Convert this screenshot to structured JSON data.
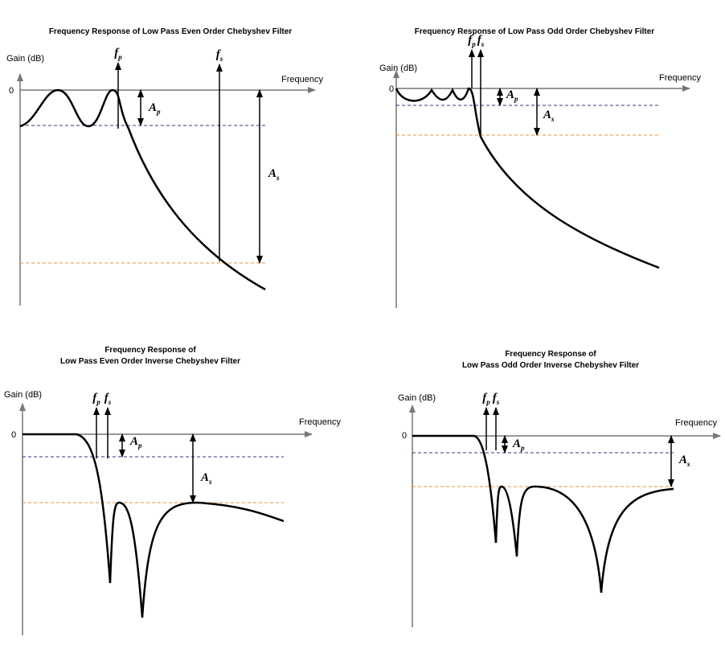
{
  "panels": [
    {
      "title": [
        "Frequency Response of Low Pass Even Order Chebyshev Filter"
      ],
      "y_label": "Gain (dB)",
      "x_label": "Frequency",
      "zero_label": "0",
      "fp": {
        "symbol": "f",
        "subscript": "p"
      },
      "fs": {
        "symbol": "f",
        "subscript": "s"
      },
      "ap": {
        "symbol": "A",
        "subscript": "p"
      },
      "as": {
        "symbol": "A",
        "subscript": "s"
      }
    },
    {
      "title": [
        "Frequency Response of Low Pass Odd Order Chebyshev Filter"
      ],
      "y_label": "Gain (dB)",
      "x_label": "Frequency",
      "zero_label": "0",
      "fp": {
        "symbol": "f",
        "subscript": "p"
      },
      "fs": {
        "symbol": "f",
        "subscript": "s"
      },
      "ap": {
        "symbol": "A",
        "subscript": "p"
      },
      "as": {
        "symbol": "A",
        "subscript": "s"
      }
    },
    {
      "title": [
        "Frequency Response of",
        "Low Pass Even Order Inverse Chebyshev Filter"
      ],
      "y_label": "Gain (dB)",
      "x_label": "Frequency",
      "zero_label": "0",
      "fp": {
        "symbol": "f",
        "subscript": "p"
      },
      "fs": {
        "symbol": "f",
        "subscript": "s"
      },
      "ap": {
        "symbol": "A",
        "subscript": "p"
      },
      "as": {
        "symbol": "A",
        "subscript": "s"
      }
    },
    {
      "title": [
        "Frequency Response of",
        "Low Pass Odd Order Inverse Chebyshev Filter"
      ],
      "y_label": "Gain (dB)",
      "x_label": "Frequency",
      "zero_label": "0",
      "fp": {
        "symbol": "f",
        "subscript": "p"
      },
      "fs": {
        "symbol": "f",
        "subscript": "s"
      },
      "ap": {
        "symbol": "A",
        "subscript": "p"
      },
      "as": {
        "symbol": "A",
        "subscript": "s"
      }
    }
  ]
}
